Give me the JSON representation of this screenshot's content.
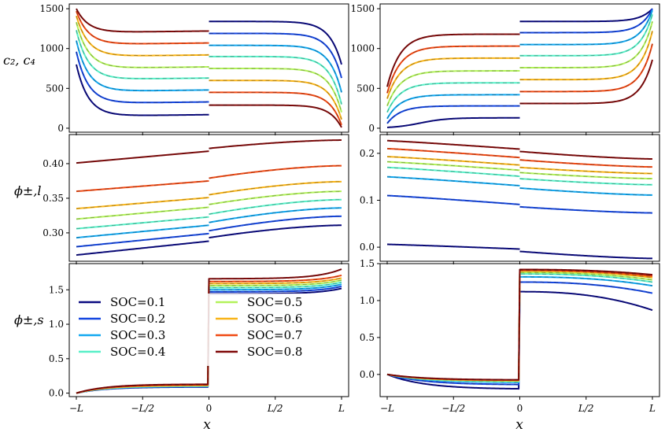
{
  "chart_data": {
    "type": "line",
    "xlabel": "x",
    "x_ticks": [
      "−L",
      "−L/2",
      "0",
      "L/2",
      "L"
    ],
    "series_names": [
      "SOC=0.1",
      "SOC=0.2",
      "SOC=0.3",
      "SOC=0.4",
      "SOC=0.5",
      "SOC=0.6",
      "SOC=0.7",
      "SOC=0.8"
    ],
    "series_colors": [
      "#0a0a80",
      "#1446e0",
      "#12a8f0",
      "#58f0c8",
      "#b2f25a",
      "#f8b418",
      "#f04a14",
      "#800a0a"
    ],
    "panels": [
      {
        "name": "c-left",
        "ylabel": "c₂, c₄",
        "ylim": [
          -50,
          1560
        ],
        "yticks": [
          0,
          500,
          1000,
          1500
        ]
      },
      {
        "name": "c-right",
        "ylabel": "",
        "ylim": [
          -50,
          1560
        ],
        "yticks": [
          0,
          500,
          1000,
          1500
        ]
      },
      {
        "name": "phil-left",
        "ylabel": "ϕ±,l",
        "ylim": [
          0.259,
          0.442
        ],
        "yticks": [
          0.3,
          0.35,
          0.4
        ]
      },
      {
        "name": "phil-right",
        "ylabel": "",
        "ylim": [
          -0.03,
          0.24
        ],
        "yticks": [
          0.0,
          0.1,
          0.2
        ]
      },
      {
        "name": "phis-left",
        "ylabel": "ϕ±,s",
        "ylim": [
          -0.05,
          1.88
        ],
        "yticks": [
          0.0,
          0.5,
          1.0,
          1.5
        ]
      },
      {
        "name": "phis-right",
        "ylabel": "",
        "ylim": [
          -0.3,
          1.5
        ],
        "yticks": [
          0.0,
          0.5,
          1.0,
          1.5
        ]
      }
    ],
    "data": {
      "c_left": {
        "left_plateau": [
          150,
          310,
          460,
          610,
          750,
          900,
          1050,
          1200
        ],
        "left_start": [
          800,
          960,
          1100,
          1230,
          1330,
          1410,
          1470,
          1500
        ],
        "left_end_rise": 20,
        "right_plateau": [
          1340,
          1190,
          1040,
          900,
          750,
          600,
          450,
          290
        ],
        "right_end": [
          800,
          630,
          450,
          300,
          200,
          110,
          40,
          10
        ]
      },
      "c_right": {
        "left_start": [
          0,
          60,
          120,
          200,
          280,
          370,
          440,
          520
        ],
        "left_plateau": [
          130,
          280,
          420,
          570,
          720,
          880,
          1030,
          1180
        ],
        "right_plateau": [
          1340,
          1200,
          1050,
          910,
          760,
          610,
          460,
          310
        ],
        "right_end": [
          1500,
          1500,
          1480,
          1430,
          1340,
          1220,
          1060,
          860
        ]
      },
      "phi_l_left": {
        "start": [
          0.268,
          0.28,
          0.293,
          0.306,
          0.32,
          0.335,
          0.36,
          0.401
        ],
        "mid_left": [
          0.288,
          0.299,
          0.311,
          0.323,
          0.337,
          0.351,
          0.375,
          0.418
        ],
        "mid_right": [
          0.293,
          0.303,
          0.315,
          0.327,
          0.341,
          0.355,
          0.379,
          0.422
        ],
        "end": [
          0.311,
          0.324,
          0.336,
          0.348,
          0.36,
          0.374,
          0.397,
          0.434
        ]
      },
      "phi_l_right": {
        "start": [
          0.006,
          0.11,
          0.15,
          0.17,
          0.182,
          0.193,
          0.21,
          0.227
        ],
        "mid_left": [
          -0.004,
          0.091,
          0.131,
          0.151,
          0.164,
          0.175,
          0.191,
          0.209
        ],
        "mid_right": [
          -0.009,
          0.086,
          0.126,
          0.146,
          0.159,
          0.17,
          0.186,
          0.204
        ],
        "end": [
          -0.024,
          0.073,
          0.111,
          0.133,
          0.146,
          0.157,
          0.171,
          0.188
        ]
      },
      "phi_s_left": {
        "left_plateau": [
          0.09,
          0.095,
          0.1,
          0.105,
          0.11,
          0.115,
          0.12,
          0.13
        ],
        "right_plateau": [
          1.44,
          1.47,
          1.5,
          1.53,
          1.56,
          1.59,
          1.62,
          1.66
        ],
        "right_end": [
          1.52,
          1.55,
          1.58,
          1.61,
          1.64,
          1.67,
          1.71,
          1.8
        ]
      },
      "phi_s_right": {
        "left_end": [
          -0.2,
          -0.14,
          -0.11,
          -0.1,
          -0.09,
          -0.085,
          -0.08,
          -0.075
        ],
        "right_plateau": [
          1.12,
          1.25,
          1.32,
          1.36,
          1.38,
          1.4,
          1.41,
          1.42
        ],
        "right_end": [
          0.87,
          1.1,
          1.2,
          1.25,
          1.28,
          1.31,
          1.33,
          1.35
        ]
      }
    }
  }
}
